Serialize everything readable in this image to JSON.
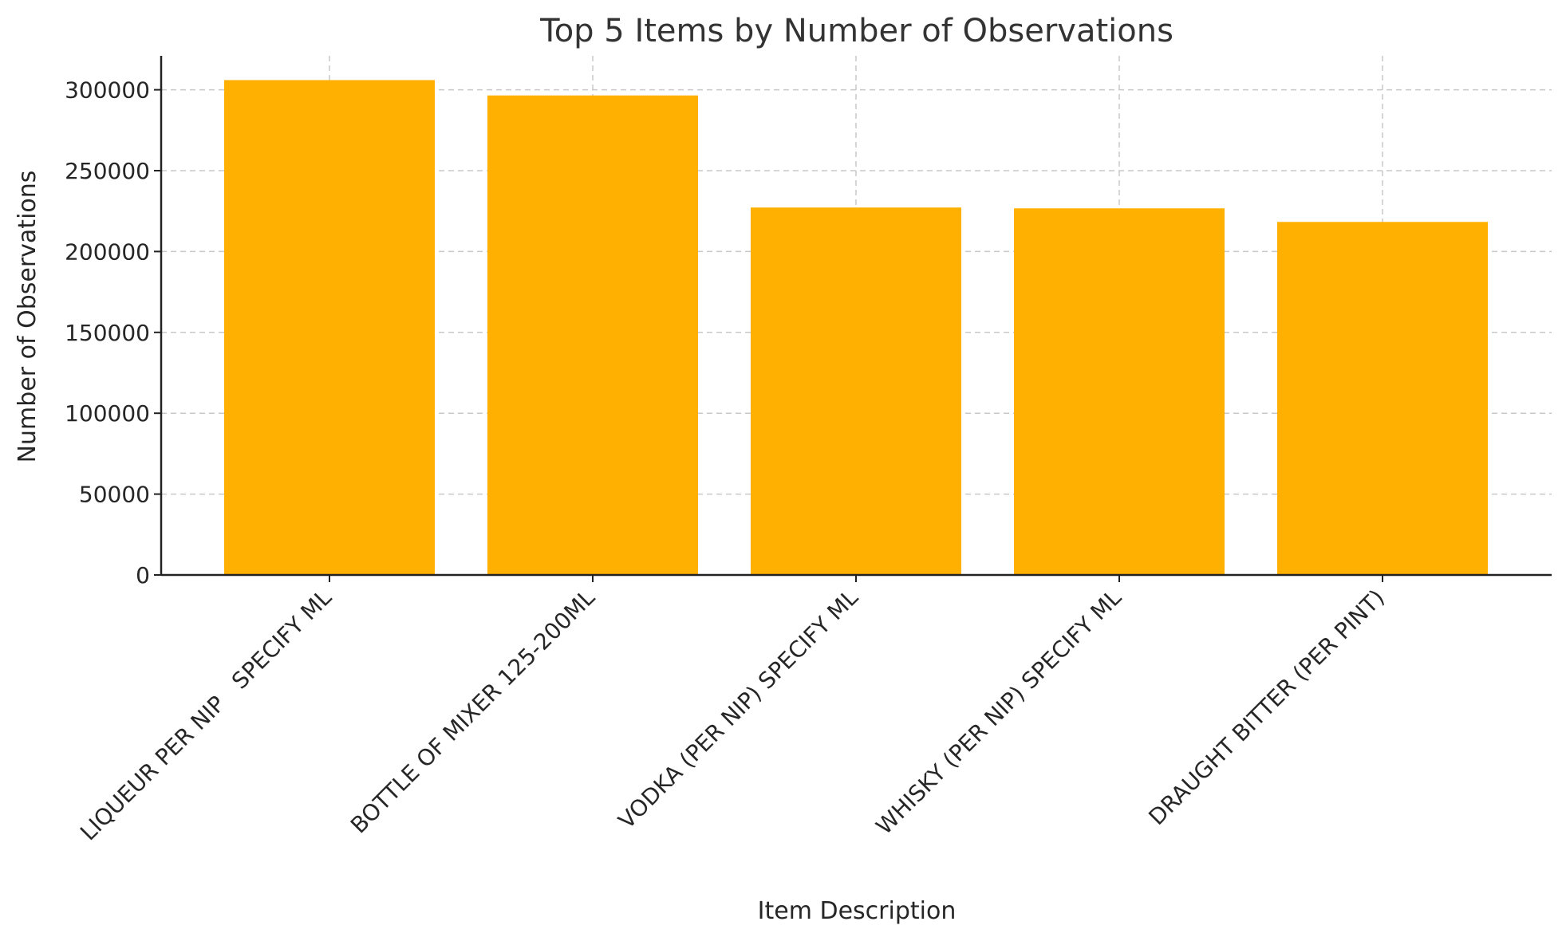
{
  "chart_data": {
    "type": "bar",
    "title": "Top 5 Items by Number of Observations",
    "xlabel": "Item Description",
    "ylabel": "Number of Observations",
    "categories": [
      "LIQUEUR PER NIP   SPECIFY ML",
      "BOTTLE OF MIXER 125-200ML",
      "VODKA (PER NIP) SPECIFY ML",
      "WHISKY (PER NIP) SPECIFY ML",
      "DRAUGHT BITTER (PER PINT)"
    ],
    "values": [
      306000,
      296500,
      227200,
      226700,
      218300
    ],
    "ylim": [
      0,
      321000
    ],
    "yticks": [
      0,
      50000,
      100000,
      150000,
      200000,
      250000,
      300000
    ],
    "bar_color": "#FFB000",
    "grid": true,
    "legend": "none"
  }
}
